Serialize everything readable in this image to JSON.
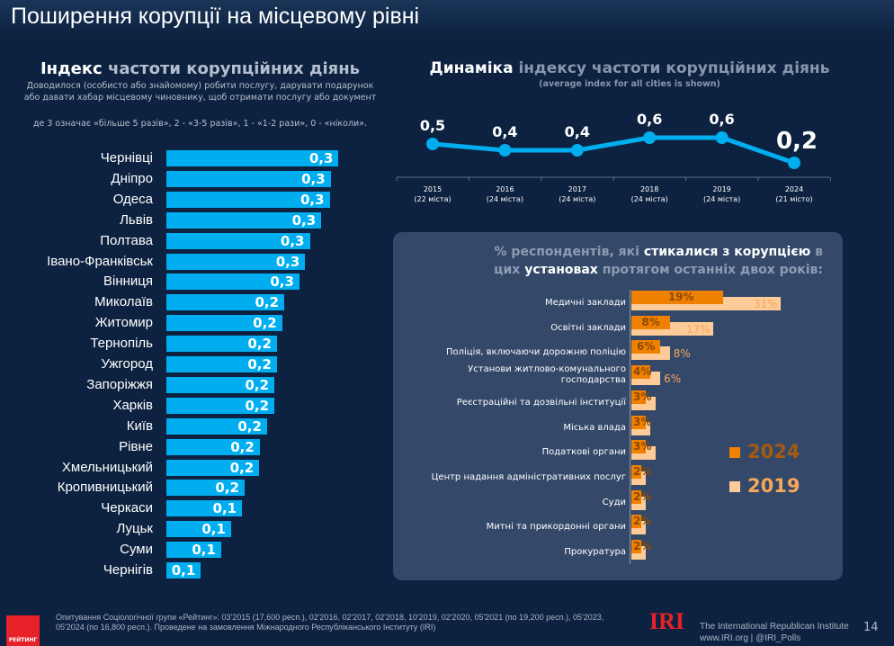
{
  "title": "Поширення корупції на місцевому рівні",
  "left": {
    "heading_bold": "Індекс",
    "heading_rest": "частоти корупційних діянь",
    "subtitle": "Доводилося (особисто або знайомому) робити послугу, дарувати подарунок або давати хабар місцевому чиновнику, щоб отримати послугу або документ",
    "note": "де 3 означає «більше 5 разів», 2 - «3-5 разів», 1 - «1-2 рази», 0 - «ніколи»."
  },
  "right": {
    "heading_bold": "Динаміка",
    "heading_rest": "індексу частоти корупційних діянь",
    "subtitle": "(average index for all cities is shown)"
  },
  "box": {
    "h1a": "% респондентів, які ",
    "h1b": "стикалися з корупцією",
    "h1c": " в",
    "h2a": "цих ",
    "h2b": "установах",
    "h2c": " протягом останніх двох років:"
  },
  "chart_data": [
    {
      "type": "bar",
      "orientation": "horizontal",
      "categories": [
        "Чернівці",
        "Дніпро",
        "Одеса",
        "Львів",
        "Полтава",
        "Івано-Франківськ",
        "Вінниця",
        "Миколаїв",
        "Житомир",
        "Тернопіль",
        "Ужгород",
        "Запоріжжя",
        "Харків",
        "Київ",
        "Рівне",
        "Хмельницький",
        "Кропивницький",
        "Черкаси",
        "Луцьк",
        "Суми",
        "Чернігів"
      ],
      "values": [
        0.33,
        0.315,
        0.313,
        0.297,
        0.275,
        0.266,
        0.255,
        0.226,
        0.222,
        0.212,
        0.212,
        0.207,
        0.207,
        0.193,
        0.179,
        0.178,
        0.15,
        0.145,
        0.124,
        0.105,
        0.066
      ],
      "labels": [
        "0,3",
        "0,3",
        "0,3",
        "0,3",
        "0,3",
        "0,3",
        "0,3",
        "0,2",
        "0,2",
        "0,2",
        "0,2",
        "0,2",
        "0,2",
        "0,2",
        "0,2",
        "0,2",
        "0,2",
        "0,1",
        "0,1",
        "0,1",
        "0,1"
      ],
      "color": "#00aeef"
    },
    {
      "type": "line",
      "x": [
        "2015",
        "2016",
        "2017",
        "2018",
        "2019",
        "2024"
      ],
      "x_sub": [
        "(22 міста)",
        "(24 міста)",
        "(24 міста)",
        "(24 міста)",
        "(24 міста)",
        "(21 місто)"
      ],
      "values": [
        0.5,
        0.4,
        0.4,
        0.6,
        0.6,
        0.2
      ],
      "labels": [
        "0,5",
        "0,4",
        "0,4",
        "0,6",
        "0,6",
        "0,2"
      ],
      "color": "#00aeef"
    },
    {
      "type": "bar",
      "orientation": "horizontal",
      "categories": [
        "Медичні заклади",
        "Освітні заклади",
        "Поліція, включаючи дорожню поліцію",
        "Установи житлово-комунального господарства",
        "Реєстраційні та дозвільні інституції",
        "Міська влада",
        "Податкові органи",
        "Центр надання адміністративних послуг",
        "Суди",
        "Митні та прикордонні органи",
        "Прокуратура"
      ],
      "series": [
        {
          "name": "2024",
          "values": [
            19,
            8,
            6,
            4,
            3,
            3,
            3,
            2,
            2,
            2,
            2
          ],
          "labels": [
            "19%",
            "8%",
            "6%",
            "4%",
            "3%",
            "3%",
            "3%",
            "2%",
            "2%",
            "2%",
            "2%"
          ],
          "color": "#f08000"
        },
        {
          "name": "2019",
          "values": [
            31,
            17,
            8,
            6,
            5,
            4,
            5,
            3,
            3,
            3,
            3
          ],
          "labels": [
            "31%",
            "17%",
            "8%",
            "6%",
            "",
            "",
            "",
            "",
            "",
            "",
            ""
          ],
          "color": "#fdcb97"
        }
      ]
    }
  ],
  "footer": {
    "line1": "Опитування Соціологічної групи «Рейтинг»: 03'2015 (17,600 респ.), 02'2016, 02'2017, 02'2018, 10'2019, 02'2020, 05'2021 (по 19,200 респ.), 05'2023,",
    "line2": "05'2024 (по 16,800 респ.). Проведене на замовлення Міжнародного Республіканського Інституту (IRI)",
    "logo": "РЕЙТИНГ",
    "iri": "IRI",
    "iri_name": "The International Republican Institute",
    "iri_web": "www.IRI.org | @IRI_Polls",
    "page": "14"
  }
}
